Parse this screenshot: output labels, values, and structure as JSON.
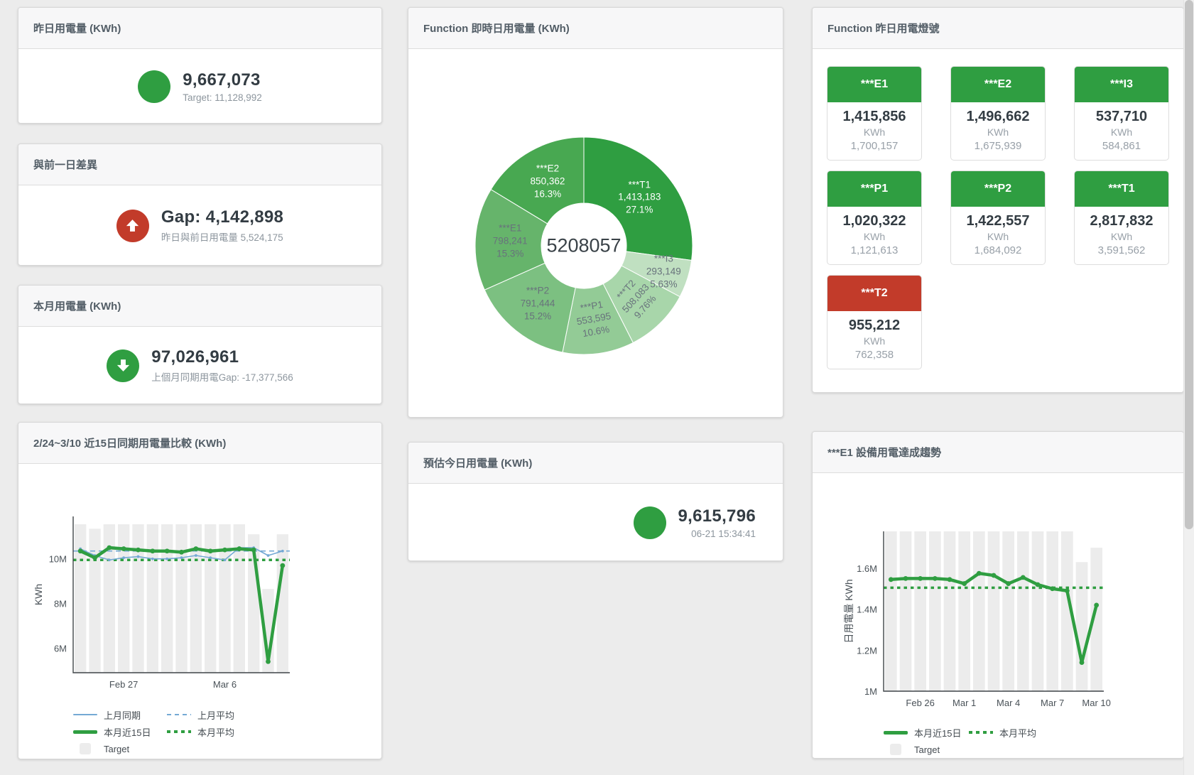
{
  "colors": {
    "green": "#2f9e41",
    "red": "#c23b2a",
    "blue": "#74a9d4",
    "bar_gray": "#ececec"
  },
  "panels": {
    "yesterday": {
      "title": "昨日用電量 (KWh)",
      "value": "9,667,073",
      "subtitle": "Target: 11,128,992"
    },
    "prev_day_gap": {
      "title": "與前一日差異",
      "value": "Gap: 4,142,898",
      "subtitle": "昨日與前日用電量 5,524,175"
    },
    "month": {
      "title": "本月用電量 (KWh)",
      "value": "97,026,961",
      "subtitle": "上個月同期用電Gap: -17,377,566"
    },
    "compare15": {
      "title": "2/24~3/10 近15日同期用電量比較 (KWh)"
    },
    "realtime": {
      "title": "Function 即時日用電量 (KWh)"
    },
    "estimate": {
      "title": "預估今日用電量 (KWh)",
      "value": "9,615,796",
      "subtitle": "06-21 15:34:41"
    },
    "lights": {
      "title": "Function 昨日用電燈號",
      "unit_label": "KWh",
      "tiles": [
        {
          "name": "***E1",
          "value": "1,415,856",
          "prev": "1,700,157",
          "status": "green"
        },
        {
          "name": "***E2",
          "value": "1,496,662",
          "prev": "1,675,939",
          "status": "green"
        },
        {
          "name": "***I3",
          "value": "537,710",
          "prev": "584,861",
          "status": "green"
        },
        {
          "name": "***P1",
          "value": "1,020,322",
          "prev": "1,121,613",
          "status": "green"
        },
        {
          "name": "***P2",
          "value": "1,422,557",
          "prev": "1,684,092",
          "status": "green"
        },
        {
          "name": "***T1",
          "value": "2,817,832",
          "prev": "3,591,562",
          "status": "green"
        },
        {
          "name": "***T2",
          "value": "955,212",
          "prev": "762,358",
          "status": "red"
        }
      ]
    },
    "e1_trend": {
      "title": "***E1 設備用電達成趨勢"
    }
  },
  "chart_data": [
    {
      "type": "pie",
      "title": "Function 即時日用電量 (KWh)",
      "center_label": "5208057",
      "slices": [
        {
          "name": "***T1",
          "value": 1413183,
          "value_label": "1,413,183",
          "pct": "27.1%",
          "color": "#2f9e41",
          "label_color": "#ffffff"
        },
        {
          "name": "***I3",
          "value": 293149,
          "value_label": "293,149",
          "pct": "5.63%",
          "color": "#c0e0c1",
          "label_color": "#68727c",
          "outside": true
        },
        {
          "name": "***T2",
          "value": 508083,
          "value_label": "508,083",
          "pct": "9.76%",
          "color": "#a8d6aa",
          "label_color": "#68727c",
          "rotate": -48
        },
        {
          "name": "***P1",
          "value": 553595,
          "value_label": "553,595",
          "pct": "10.6%",
          "color": "#93cb96",
          "label_color": "#68727c",
          "rotate": -10
        },
        {
          "name": "***P2",
          "value": 791444,
          "value_label": "791,444",
          "pct": "15.2%",
          "color": "#7cc081",
          "label_color": "#68727c"
        },
        {
          "name": "***E1",
          "value": 798241,
          "value_label": "798,241",
          "pct": "15.3%",
          "color": "#66b46b",
          "label_color": "#68727c"
        },
        {
          "name": "***E2",
          "value": 850362,
          "value_label": "850,362",
          "pct": "16.3%",
          "color": "#48a851",
          "label_color": "#ffffff"
        }
      ]
    },
    {
      "type": "bar+line",
      "title": "2/24~3/10 近15日同期用電量比較 (KWh)",
      "ylabel": "KWh",
      "ylim": [
        4.9,
        11.9
      ],
      "yticks": [
        {
          "v": 6,
          "label": "6M"
        },
        {
          "v": 8,
          "label": "8M"
        },
        {
          "v": 10,
          "label": "10M"
        }
      ],
      "xticks": [
        {
          "i": 3,
          "label": "Feb 27"
        },
        {
          "i": 10,
          "label": "Mar 6"
        }
      ],
      "bars": {
        "name": "Target",
        "color": "#ececec",
        "values": [
          11.55,
          11.35,
          11.55,
          11.55,
          11.55,
          11.55,
          11.55,
          11.55,
          11.55,
          11.55,
          11.55,
          11.55,
          11.1,
          8.65,
          11.1
        ]
      },
      "series": [
        {
          "name": "上月同期",
          "style": "solid",
          "color": "#74a9d4",
          "width": 1.6,
          "markers": true,
          "values": [
            10.45,
            10.15,
            9.95,
            10.05,
            10.1,
            10.0,
            10.0,
            10.05,
            10.15,
            10.05,
            9.95,
            10.5,
            10.5,
            10.15,
            10.35
          ]
        },
        {
          "name": "上月平均",
          "style": "dashed",
          "color": "#74a9d4",
          "width": 1.6,
          "avg": 10.35
        },
        {
          "name": "本月近15日",
          "style": "solid",
          "color": "#2f9e41",
          "width": 4.5,
          "markers": true,
          "values": [
            10.35,
            10.05,
            10.5,
            10.45,
            10.4,
            10.35,
            10.35,
            10.3,
            10.45,
            10.35,
            10.4,
            10.45,
            10.4,
            5.4,
            9.7
          ]
        },
        {
          "name": "本月平均",
          "style": "dotted",
          "color": "#2f9e41",
          "width": 3.5,
          "avg": 9.95
        }
      ],
      "legend_rows": [
        [
          "上月同期",
          "上月平均"
        ],
        [
          "本月近15日",
          "本月平均"
        ],
        [
          "Target"
        ]
      ]
    },
    {
      "type": "bar+line",
      "title": "***E1 設備用電達成趨勢",
      "ylabel": "日用電量 KWh",
      "ylim": [
        1.0,
        1.78
      ],
      "yticks": [
        {
          "v": 1,
          "label": "1M"
        },
        {
          "v": 1.2,
          "label": "1.2M"
        },
        {
          "v": 1.4,
          "label": "1.4M"
        },
        {
          "v": 1.6,
          "label": "1.6M"
        }
      ],
      "xticks": [
        {
          "i": 2,
          "label": "Feb 26"
        },
        {
          "i": 5,
          "label": "Mar 1"
        },
        {
          "i": 8,
          "label": "Mar 4"
        },
        {
          "i": 11,
          "label": "Mar 7"
        },
        {
          "i": 14,
          "label": "Mar 10"
        }
      ],
      "bars": {
        "name": "Target",
        "color": "#ececec",
        "values": [
          1.78,
          1.78,
          1.78,
          1.78,
          1.78,
          1.78,
          1.78,
          1.78,
          1.78,
          1.78,
          1.78,
          1.78,
          1.78,
          1.63,
          1.7
        ]
      },
      "series": [
        {
          "name": "本月近15日",
          "style": "solid",
          "color": "#2f9e41",
          "width": 4.5,
          "markers": true,
          "values": [
            1.545,
            1.55,
            1.55,
            1.55,
            1.545,
            1.525,
            1.575,
            1.565,
            1.525,
            1.555,
            1.52,
            1.5,
            1.49,
            1.14,
            1.42
          ]
        },
        {
          "name": "本月平均",
          "style": "dotted",
          "color": "#2f9e41",
          "width": 3.5,
          "avg": 1.505
        }
      ],
      "legend_rows": [
        [
          "本月近15日",
          "本月平均"
        ],
        [
          "Target"
        ]
      ]
    }
  ]
}
